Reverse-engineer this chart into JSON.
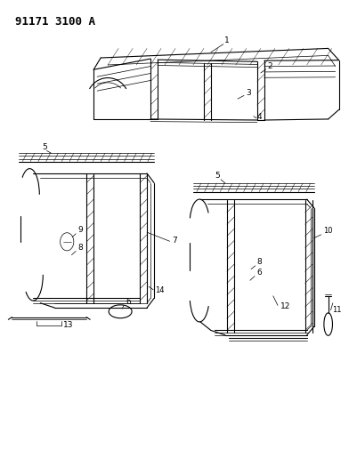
{
  "title_text": "91171 3100 A",
  "background_color": "#ffffff",
  "line_color": "#000000",
  "label_color": "#000000",
  "figsize": [
    4.02,
    5.33
  ],
  "dpi": 100,
  "title_fontsize": 9,
  "label_fontsize": 7
}
